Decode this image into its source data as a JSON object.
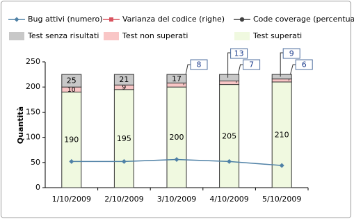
{
  "chart_data": {
    "type": "stacked-bar-line",
    "y_label": "Quantità",
    "categories": [
      "1/10/2009",
      "2/10/2009",
      "3/10/2009",
      "4/10/2009",
      "5/10/2009"
    ],
    "ylim": [
      0,
      250
    ],
    "yticks": [
      0,
      50,
      100,
      150,
      200,
      250
    ],
    "bars": [
      {
        "name": "Test superati",
        "color": "#f0f9e0",
        "values": [
          190,
          195,
          200,
          205,
          210
        ]
      },
      {
        "name": "Test non superati",
        "color": "#f9c6c6",
        "values": [
          10,
          9,
          8,
          7,
          6
        ]
      },
      {
        "name": "Test senza risultati",
        "color": "#c8c8c8",
        "values": [
          25,
          21,
          17,
          13,
          9
        ]
      }
    ],
    "series": [
      {
        "name": "Bug attivi (numero)",
        "color": "#4f81a6",
        "marker": "diamond",
        "values": [
          52,
          52,
          56,
          52,
          44
        ]
      },
      {
        "name": "Varianza del codice (righe)",
        "color": "#d9535f",
        "marker": "square",
        "values": [
          null,
          null,
          null,
          null,
          null
        ]
      },
      {
        "name": "Code coverage (percentuale)",
        "color": "#404040",
        "marker": "circle",
        "values": [
          null,
          null,
          null,
          null,
          null
        ]
      }
    ]
  }
}
